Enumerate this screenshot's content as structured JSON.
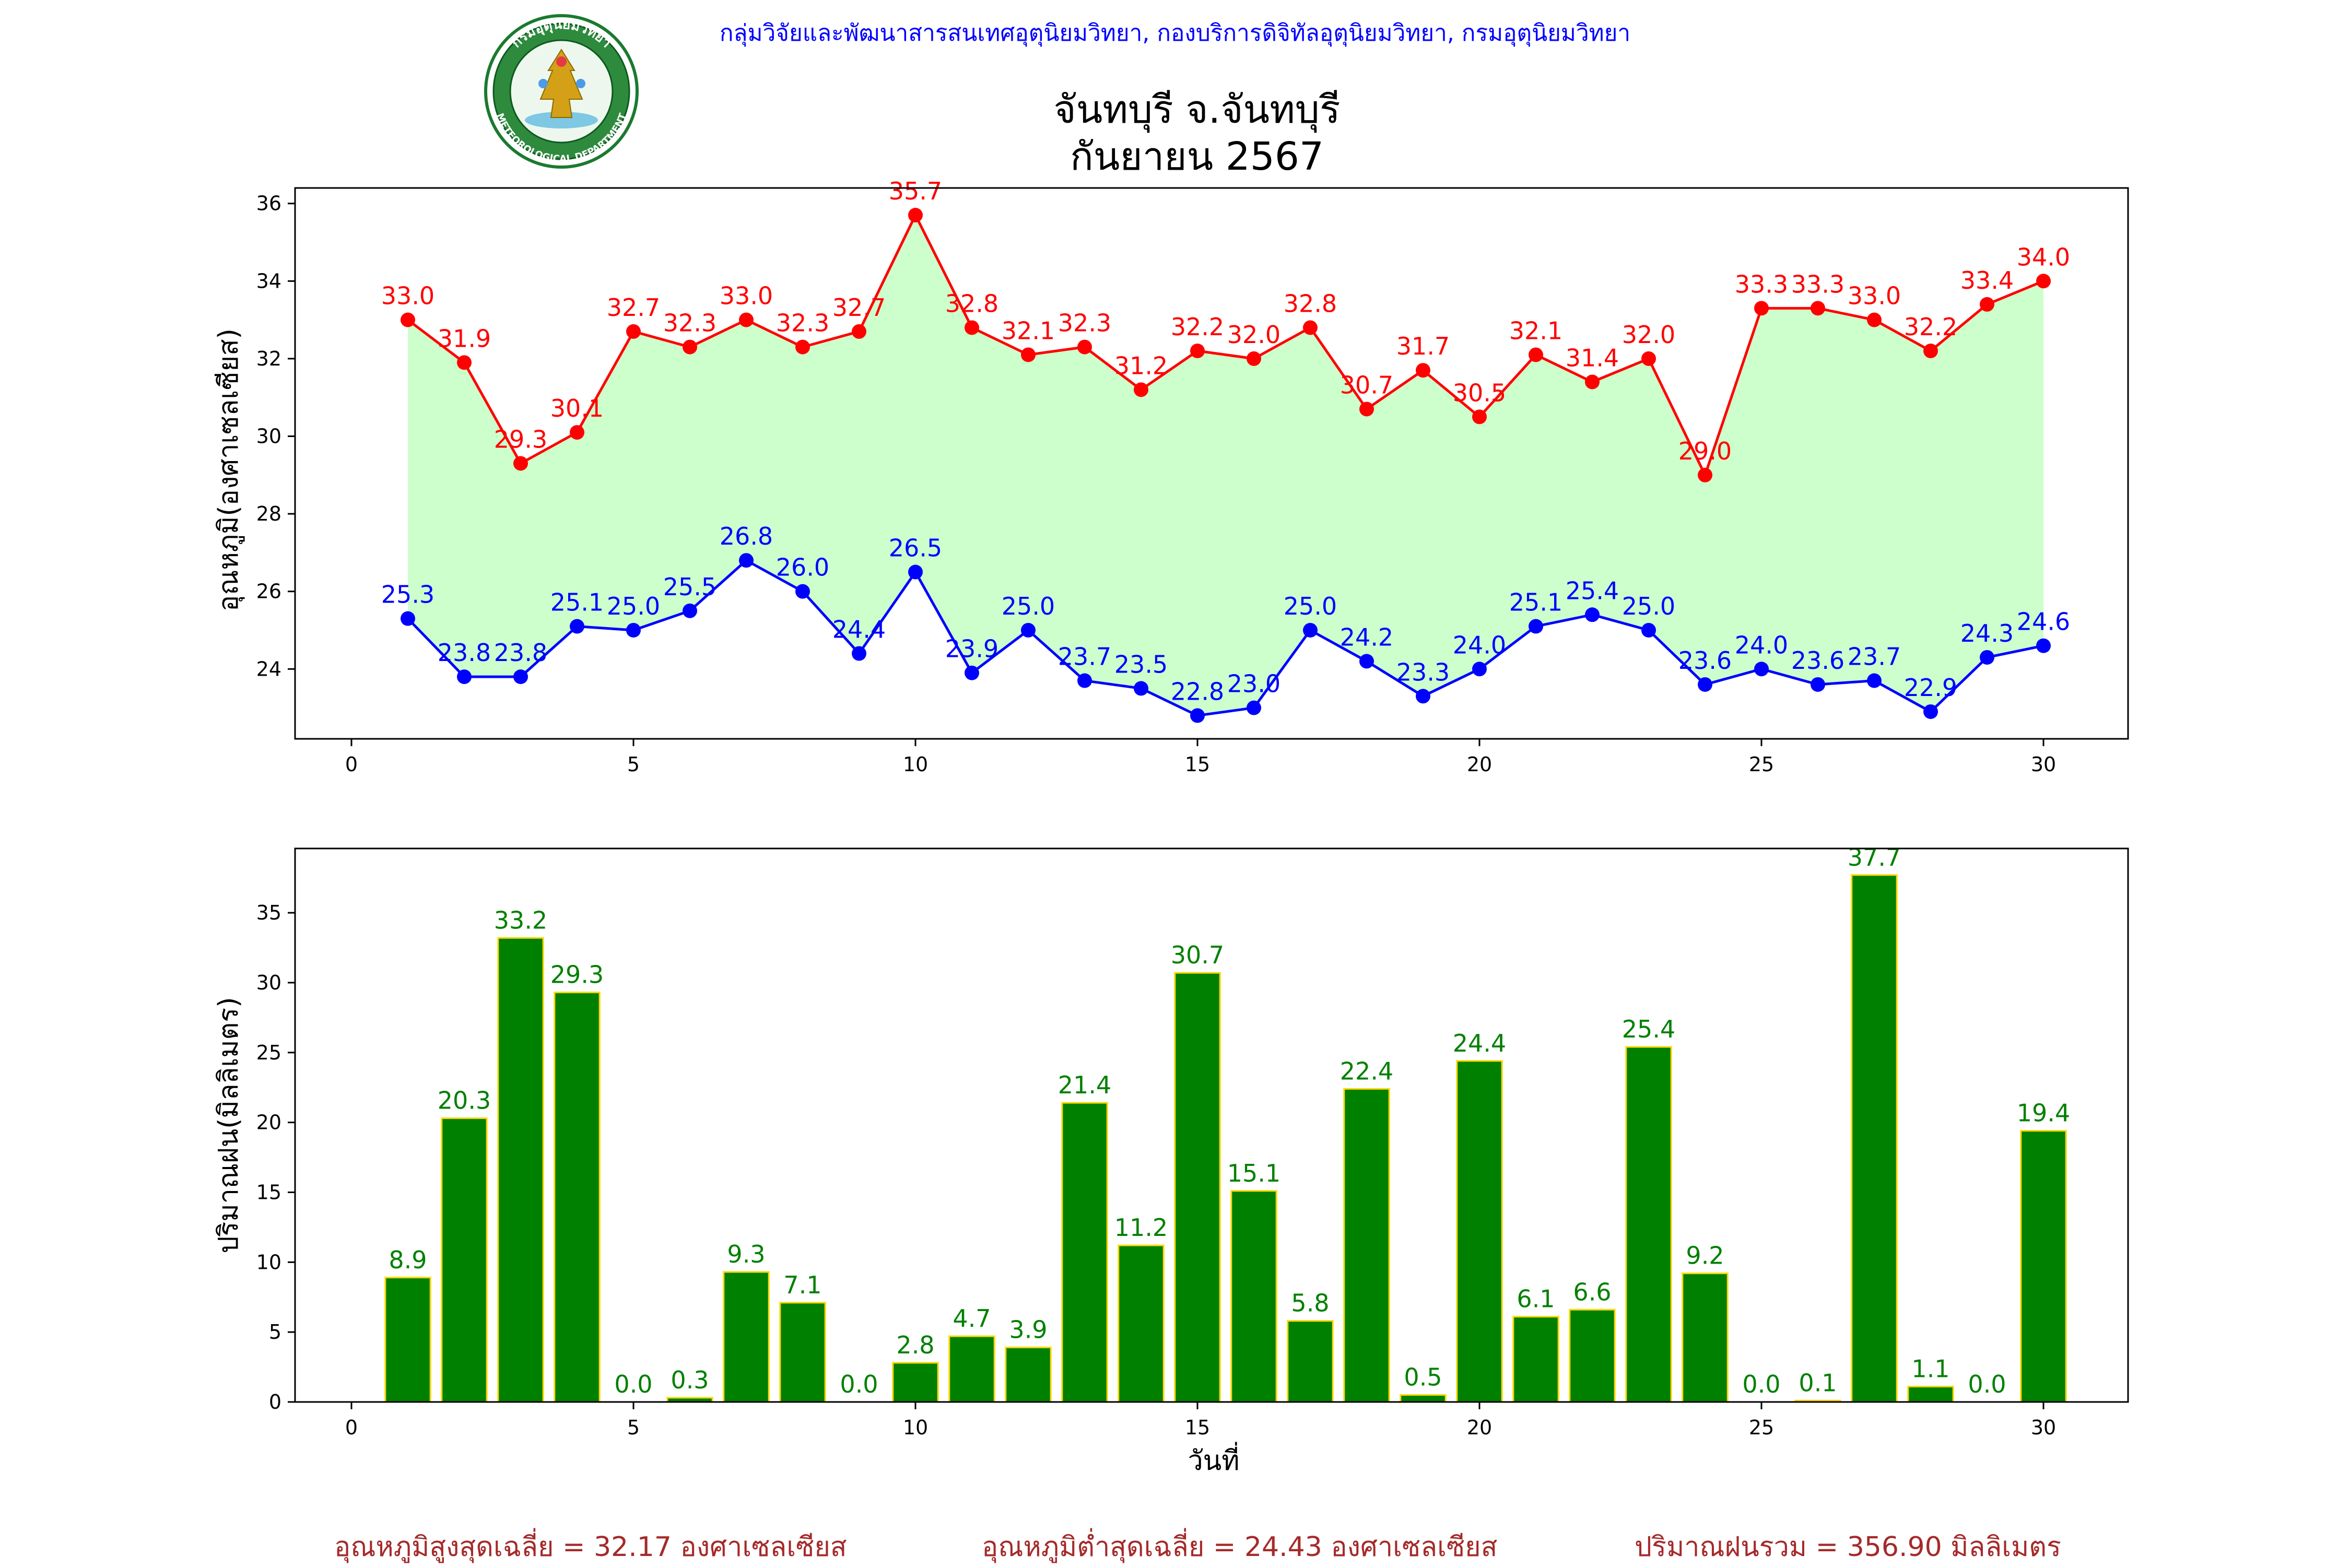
{
  "header": "กลุ่มวิจัยและพัฒนาสารสนเทศอุตุนิยมวิทยา, กองบริการดิจิทัลอุตุนิยมวิทยา, กรมอุตุนิยมวิทยา",
  "logo": {
    "top_text": "กรมอุตุนิยมวิทยา",
    "bottom_text": "METEOROLOGICAL DEPARTMENT"
  },
  "colors": {
    "tmax": "#ff0000",
    "tmin": "#0000ff",
    "fill": "#ccffcc",
    "rain_bar": "#008000",
    "rain_edge": "#ffd700",
    "rain_label": "#008000",
    "summary": "#a52a2a",
    "header": "#0000ff"
  },
  "summary": {
    "tmax_avg": "อุณหภูมิสูงสุดเฉลี่ย = 32.17 องศาเซลเซียส",
    "tmin_avg": "อุณหภูมิต่ำสุดเฉลี่ย = 24.43 องศาเซลเซียส",
    "rain_total": "ปริมาณฝนรวม = 356.90 มิลลิเมตร"
  },
  "chart_data": [
    {
      "type": "line",
      "title": "จันทบุรี จ.จันทบุรี",
      "subtitle": "กันยายน 2567",
      "xlabel": "",
      "ylabel": "อุณหภูมิ(องศาเซลเซียส)",
      "xlim": [
        -1,
        31.5
      ],
      "ylim": [
        22.2,
        36.4
      ],
      "xticks": [
        0,
        5,
        10,
        15,
        20,
        25,
        30
      ],
      "yticks": [
        24,
        26,
        28,
        30,
        32,
        34,
        36
      ],
      "grid": false,
      "x": [
        1,
        2,
        3,
        4,
        5,
        6,
        7,
        8,
        9,
        10,
        11,
        12,
        13,
        14,
        15,
        16,
        17,
        18,
        19,
        20,
        21,
        22,
        23,
        24,
        25,
        26,
        27,
        28,
        29,
        30
      ],
      "series": [
        {
          "key": "tmax",
          "values": [
            33.0,
            31.9,
            29.3,
            30.1,
            32.7,
            32.3,
            33.0,
            32.3,
            32.7,
            35.7,
            32.8,
            32.1,
            32.3,
            31.2,
            32.2,
            32.0,
            32.8,
            30.7,
            31.7,
            30.5,
            32.1,
            31.4,
            32.0,
            29.0,
            33.3,
            33.3,
            33.0,
            32.2,
            33.4,
            34.0
          ]
        },
        {
          "key": "tmin",
          "values": [
            25.3,
            23.8,
            23.8,
            25.1,
            25.0,
            25.5,
            26.8,
            26.0,
            24.4,
            26.5,
            23.9,
            25.0,
            23.7,
            23.5,
            22.8,
            23.0,
            25.0,
            24.2,
            23.3,
            24.0,
            25.1,
            25.4,
            25.0,
            23.6,
            24.0,
            23.6,
            23.7,
            22.9,
            24.3,
            24.6
          ]
        }
      ]
    },
    {
      "type": "bar",
      "xlabel": "วันที่",
      "ylabel": "ปริมาณฝน(มิลลิเมตร)",
      "xlim": [
        -1,
        31.5
      ],
      "ylim": [
        0,
        39.6
      ],
      "xticks": [
        0,
        5,
        10,
        15,
        20,
        25,
        30
      ],
      "yticks": [
        0,
        5,
        10,
        15,
        20,
        25,
        30,
        35
      ],
      "grid": false,
      "categories": [
        1,
        2,
        3,
        4,
        5,
        6,
        7,
        8,
        9,
        10,
        11,
        12,
        13,
        14,
        15,
        16,
        17,
        18,
        19,
        20,
        21,
        22,
        23,
        24,
        25,
        26,
        27,
        28,
        29,
        30
      ],
      "values": [
        8.9,
        20.3,
        33.2,
        29.3,
        0.0,
        0.3,
        9.3,
        7.1,
        0.0,
        2.8,
        4.7,
        3.9,
        21.4,
        11.2,
        30.7,
        15.1,
        5.8,
        22.4,
        0.5,
        24.4,
        6.1,
        6.6,
        25.4,
        9.2,
        0.0,
        0.1,
        37.7,
        1.1,
        0.0,
        19.4
      ]
    }
  ]
}
